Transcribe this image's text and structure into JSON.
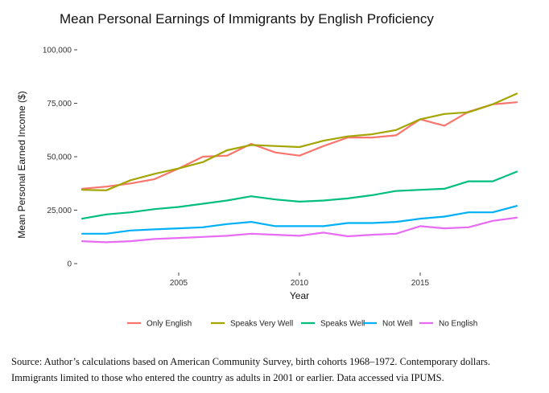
{
  "chart_data": {
    "type": "line",
    "title": "Mean Personal Earnings of Immigrants by English Proficiency",
    "xlabel": "Year",
    "ylabel": "Mean Personal Earned Income ($)",
    "xlim": [
      2001,
      2019
    ],
    "ylim": [
      0,
      100000
    ],
    "x_ticks": [
      2005,
      2010,
      2015
    ],
    "y_ticks": [
      0,
      25000,
      50000,
      75000,
      100000
    ],
    "y_tick_labels": [
      "0",
      "25,000",
      "50,000",
      "75,000",
      "100,000"
    ],
    "grid": false,
    "legend_position": "bottom",
    "x": [
      2001,
      2002,
      2003,
      2004,
      2005,
      2006,
      2007,
      2008,
      2009,
      2010,
      2011,
      2012,
      2013,
      2014,
      2015,
      2016,
      2017,
      2018,
      2019
    ],
    "series": [
      {
        "name": "Only English",
        "color": "#F8766D",
        "values": [
          35000,
          36000,
          37500,
          39500,
          44500,
          50000,
          50500,
          56000,
          52000,
          50500,
          55000,
          59000,
          59000,
          60000,
          67500,
          64500,
          71000,
          74500,
          75500
        ]
      },
      {
        "name": "Speaks Very Well",
        "color": "#A3A500",
        "values": [
          34500,
          34300,
          39000,
          42000,
          44500,
          47500,
          53000,
          55500,
          55000,
          54500,
          57500,
          59500,
          60500,
          62500,
          67500,
          70000,
          70800,
          74500,
          79500
        ]
      },
      {
        "name": "Speaks Well",
        "color": "#00BF7D",
        "values": [
          21000,
          23000,
          24000,
          25500,
          26500,
          28000,
          29500,
          31500,
          30000,
          29000,
          29500,
          30500,
          32000,
          34000,
          34500,
          35000,
          38500,
          38500,
          43000
        ]
      },
      {
        "name": "Not Well",
        "color": "#00B0F6",
        "values": [
          14000,
          14000,
          15500,
          16000,
          16500,
          17000,
          18500,
          19500,
          17500,
          17500,
          17500,
          19000,
          19000,
          19500,
          21000,
          22000,
          24000,
          24000,
          27000
        ]
      },
      {
        "name": "No English",
        "color": "#E76BF3",
        "values": [
          10500,
          10000,
          10500,
          11500,
          12000,
          12500,
          13000,
          14000,
          13500,
          13000,
          14500,
          12800,
          13500,
          14000,
          17500,
          16500,
          17000,
          20000,
          21500
        ]
      }
    ]
  },
  "source_note": {
    "line1": "Source: Author’s calculations based on American Community Survey, birth cohorts 1968–1972. Contemporary dollars.",
    "line2": "Immigrants limited to those who entered the country as adults in 2001 or earlier. Data accessed via IPUMS."
  }
}
